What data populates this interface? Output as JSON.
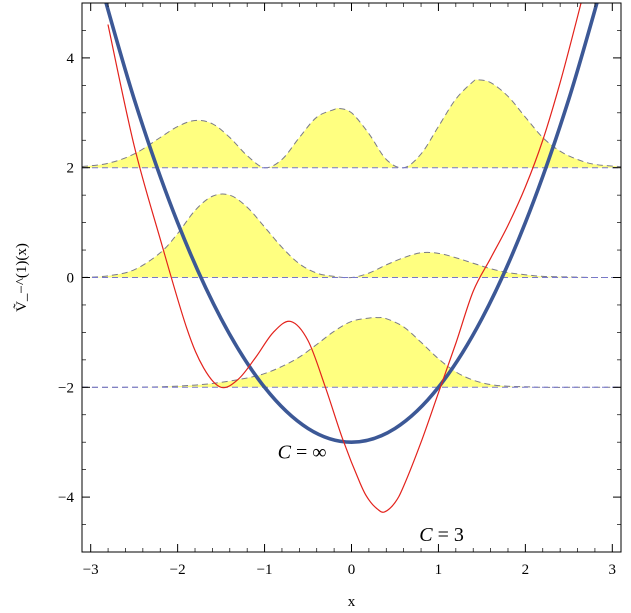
{
  "chart_data": {
    "type": "line",
    "xlabel": "x",
    "ylabel": "Ṽ_−^(1)(x)",
    "xlim": [
      -3.1,
      3.1
    ],
    "ylim": [
      -5.0,
      5.0
    ],
    "x_ticks": [
      -3,
      -2,
      -1,
      0,
      1,
      2,
      3
    ],
    "y_ticks": [
      -4,
      -2,
      0,
      2,
      4
    ],
    "x_tick_labels": [
      "−3",
      "−2",
      "−1",
      "0",
      "1",
      "2",
      "3"
    ],
    "y_tick_labels": [
      "−4",
      "−2",
      "0",
      "2",
      "4"
    ],
    "grid": false,
    "annotations": [
      {
        "var": "C",
        "rest": " = ∞",
        "x": -0.85,
        "y": -3.3
      },
      {
        "var": "C",
        "rest": " = 3",
        "x": 0.78,
        "y": -4.8
      }
    ],
    "series": [
      {
        "style": "thick blue solid",
        "color": "#3c5896",
        "x": [
          -3.0,
          -2.5,
          -2.0,
          -1.5,
          -1.0,
          -0.5,
          0.0,
          0.5,
          1.0,
          1.5,
          2.0,
          2.5,
          3.0
        ],
        "y": [
          6.0,
          3.25,
          1.0,
          -0.75,
          -2.0,
          -2.75,
          -3.0,
          -2.75,
          -2.0,
          -0.75,
          1.0,
          3.25,
          6.0
        ]
      },
      {
        "style": "thin red solid",
        "color": "#e3221c",
        "x": [
          -2.8,
          -2.5,
          -2.2,
          -1.9,
          -1.7,
          -1.5,
          -1.3,
          -1.1,
          -0.9,
          -0.7,
          -0.5,
          -0.3,
          -0.1,
          0.1,
          0.2,
          0.3,
          0.38,
          0.5,
          0.6,
          0.8,
          1.0,
          1.2,
          1.4,
          1.6,
          1.8,
          2.0,
          2.2,
          2.4,
          2.6,
          2.8
        ],
        "y": [
          4.6,
          2.4,
          0.7,
          -0.9,
          -1.65,
          -2.0,
          -1.85,
          -1.45,
          -1.0,
          -0.8,
          -1.15,
          -2.0,
          -2.95,
          -3.75,
          -4.05,
          -4.22,
          -4.27,
          -4.1,
          -3.8,
          -3.0,
          -2.1,
          -1.2,
          -0.25,
          0.35,
          0.95,
          1.65,
          2.5,
          3.55,
          4.75,
          6.0
        ]
      },
      {
        "style": "yellow filled density, dashed outline",
        "color": "#ffff80",
        "baseline": 2,
        "x": [
          -3.1,
          -2.8,
          -2.5,
          -2.2,
          -2.0,
          -1.8,
          -1.6,
          -1.4,
          -1.2,
          -1.0,
          -0.8,
          -0.6,
          -0.4,
          -0.2,
          -0.15,
          0.0,
          0.2,
          0.4,
          0.6,
          0.8,
          1.0,
          1.2,
          1.4,
          1.45,
          1.6,
          1.8,
          2.0,
          2.2,
          2.4,
          2.6,
          2.8,
          3.1
        ],
        "y": [
          2.02,
          2.08,
          2.25,
          2.55,
          2.75,
          2.86,
          2.8,
          2.55,
          2.22,
          2.0,
          2.15,
          2.55,
          2.92,
          3.06,
          3.08,
          3.0,
          2.62,
          2.15,
          2.0,
          2.25,
          2.75,
          3.25,
          3.57,
          3.6,
          3.55,
          3.3,
          2.92,
          2.55,
          2.3,
          2.15,
          2.06,
          2.02
        ]
      },
      {
        "style": "yellow filled density, dashed outline",
        "color": "#ffff80",
        "baseline": 0,
        "x": [
          -3.1,
          -2.8,
          -2.5,
          -2.2,
          -2.0,
          -1.8,
          -1.6,
          -1.4,
          -1.2,
          -1.0,
          -0.8,
          -0.6,
          -0.4,
          -0.2,
          0.0,
          0.2,
          0.4,
          0.6,
          0.8,
          1.0,
          1.2,
          1.4,
          1.6,
          1.8,
          2.0,
          2.2,
          2.5,
          2.8,
          3.1
        ],
        "y": [
          0.0,
          0.03,
          0.14,
          0.45,
          0.8,
          1.22,
          1.48,
          1.5,
          1.28,
          0.92,
          0.55,
          0.25,
          0.08,
          0.02,
          0.0,
          0.08,
          0.23,
          0.36,
          0.45,
          0.44,
          0.36,
          0.26,
          0.16,
          0.09,
          0.05,
          0.02,
          0.01,
          0.0,
          0.0
        ]
      },
      {
        "style": "yellow filled density, dashed outline",
        "color": "#ffff80",
        "baseline": -2,
        "x": [
          -3.1,
          -2.6,
          -2.2,
          -1.8,
          -1.5,
          -1.2,
          -1.0,
          -0.8,
          -0.6,
          -0.4,
          -0.2,
          0.0,
          0.2,
          0.3,
          0.4,
          0.6,
          0.8,
          1.0,
          1.2,
          1.4,
          1.6,
          1.8,
          2.0,
          2.2,
          2.6,
          3.1
        ],
        "y": [
          -2.0,
          -2.0,
          -1.99,
          -1.96,
          -1.91,
          -1.83,
          -1.75,
          -1.62,
          -1.45,
          -1.22,
          -0.98,
          -0.8,
          -0.74,
          -0.73,
          -0.75,
          -0.9,
          -1.18,
          -1.48,
          -1.72,
          -1.87,
          -1.95,
          -1.98,
          -1.99,
          -2.0,
          -2.0,
          -2.0
        ]
      }
    ]
  },
  "colors": {
    "fill": "#ffff80",
    "outline_dash": "#7a7a88",
    "baseline_dash": "#7777cc",
    "thick": "#3c5896",
    "thin": "#e3221c"
  }
}
